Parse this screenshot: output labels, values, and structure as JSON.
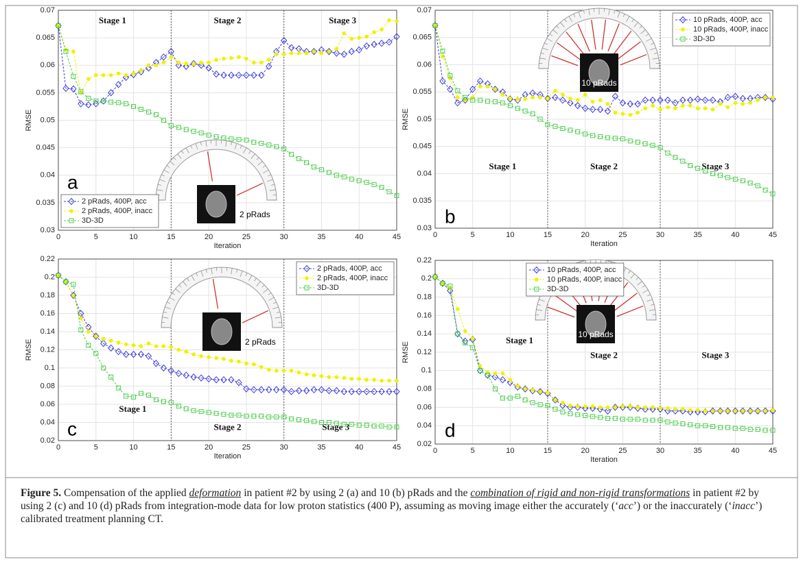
{
  "chart_data": [
    {
      "type": "line",
      "panel_label": "a",
      "xlabel": "Iteration",
      "ylabel": "RMSE",
      "x": [
        0,
        1,
        2,
        3,
        4,
        5,
        6,
        7,
        8,
        9,
        10,
        11,
        12,
        13,
        14,
        15,
        16,
        17,
        18,
        19,
        20,
        21,
        22,
        23,
        24,
        25,
        26,
        27,
        28,
        29,
        30,
        31,
        32,
        33,
        34,
        35,
        36,
        37,
        38,
        39,
        40,
        41,
        42,
        43,
        44,
        45
      ],
      "series": [
        {
          "name": "2 pRads, 400P, acc",
          "color": "#3c3cdc",
          "marker": "diamond",
          "values": [
            0.0672,
            0.0558,
            0.0557,
            0.053,
            0.0528,
            0.053,
            0.0535,
            0.055,
            0.0565,
            0.0578,
            0.0583,
            0.0588,
            0.0595,
            0.0605,
            0.0615,
            0.0625,
            0.06,
            0.0598,
            0.0603,
            0.06,
            0.0595,
            0.0584,
            0.0582,
            0.0582,
            0.0582,
            0.0582,
            0.0582,
            0.0582,
            0.0598,
            0.0625,
            0.0645,
            0.0632,
            0.063,
            0.0625,
            0.0625,
            0.0628,
            0.0625,
            0.0622,
            0.062,
            0.0625,
            0.0628,
            0.0635,
            0.0638,
            0.064,
            0.0642,
            0.0652
          ]
        },
        {
          "name": "2 pRads, 400P, inacc",
          "color": "#f0f000",
          "marker": "circle",
          "values": [
            0.0672,
            0.0628,
            0.0625,
            0.055,
            0.0575,
            0.0582,
            0.0582,
            0.0582,
            0.0585,
            0.0582,
            0.0585,
            0.059,
            0.06,
            0.06,
            0.0605,
            0.0615,
            0.0605,
            0.0603,
            0.0602,
            0.0605,
            0.0605,
            0.061,
            0.0612,
            0.0613,
            0.0615,
            0.0612,
            0.0605,
            0.0605,
            0.061,
            0.062,
            0.062,
            0.0622,
            0.0622,
            0.0622,
            0.0625,
            0.0622,
            0.0625,
            0.063,
            0.0658,
            0.0648,
            0.065,
            0.0652,
            0.066,
            0.0665,
            0.0682,
            0.068
          ]
        },
        {
          "name": "3D-3D",
          "color": "#4ccc4c",
          "marker": "square",
          "values": [
            0.0672,
            0.0625,
            0.058,
            0.0552,
            0.054,
            0.0535,
            0.0535,
            0.0533,
            0.0532,
            0.053,
            0.0525,
            0.052,
            0.0515,
            0.051,
            0.05,
            0.049,
            0.0487,
            0.0483,
            0.048,
            0.0477,
            0.0473,
            0.047,
            0.0468,
            0.0466,
            0.0465,
            0.0464,
            0.046,
            0.0458,
            0.0455,
            0.0452,
            0.0448,
            0.0438,
            0.043,
            0.0423,
            0.0415,
            0.041,
            0.0405,
            0.04,
            0.0397,
            0.0393,
            0.039,
            0.0387,
            0.0383,
            0.0378,
            0.037,
            0.0363
          ]
        }
      ],
      "xlim": [
        0,
        45
      ],
      "xticks": [
        0,
        5,
        10,
        15,
        20,
        25,
        30,
        35,
        40,
        45
      ],
      "ylim": [
        0.03,
        0.07
      ],
      "yticks": [
        0.03,
        0.035,
        0.04,
        0.045,
        0.05,
        0.055,
        0.06,
        0.065,
        0.07
      ],
      "grid": true,
      "legend": "lower left",
      "stage_boundaries": [
        15,
        30
      ],
      "stages": [
        "Stage 1",
        "Stage 2",
        "Stage 3"
      ],
      "inset_label": "2 pRads"
    },
    {
      "type": "line",
      "panel_label": "b",
      "xlabel": "Iteration",
      "ylabel": "RMSE",
      "x": [
        0,
        1,
        2,
        3,
        4,
        5,
        6,
        7,
        8,
        9,
        10,
        11,
        12,
        13,
        14,
        15,
        16,
        17,
        18,
        19,
        20,
        21,
        22,
        23,
        24,
        25,
        26,
        27,
        28,
        29,
        30,
        31,
        32,
        33,
        34,
        35,
        36,
        37,
        38,
        39,
        40,
        41,
        42,
        43,
        44,
        45
      ],
      "series": [
        {
          "name": "10 pRads, 400P, acc",
          "color": "#3c3cdc",
          "marker": "diamond",
          "values": [
            0.0672,
            0.057,
            0.0555,
            0.053,
            0.0535,
            0.0555,
            0.057,
            0.0565,
            0.0555,
            0.055,
            0.0537,
            0.0535,
            0.0545,
            0.0548,
            0.0545,
            0.0538,
            0.054,
            0.0535,
            0.053,
            0.0525,
            0.052,
            0.0518,
            0.0518,
            0.0515,
            0.0542,
            0.053,
            0.0528,
            0.0528,
            0.0535,
            0.0535,
            0.0535,
            0.0535,
            0.053,
            0.0535,
            0.0535,
            0.0537,
            0.0535,
            0.0535,
            0.0532,
            0.054,
            0.0542,
            0.0538,
            0.0538,
            0.054,
            0.054,
            0.0537
          ]
        },
        {
          "name": "10 pRads, 400P, inacc",
          "color": "#f0f000",
          "marker": "circle",
          "values": [
            0.0672,
            0.0615,
            0.0575,
            0.054,
            0.0535,
            0.054,
            0.056,
            0.056,
            0.0555,
            0.0545,
            0.0538,
            0.0537,
            0.0537,
            0.054,
            0.054,
            0.0538,
            0.0552,
            0.0545,
            0.0538,
            0.0535,
            0.0545,
            0.0532,
            0.0535,
            0.0528,
            0.0512,
            0.051,
            0.0508,
            0.0512,
            0.052,
            0.0525,
            0.0518,
            0.0522,
            0.052,
            0.0525,
            0.0525,
            0.052,
            0.052,
            0.0518,
            0.0528,
            0.0522,
            0.053,
            0.0528,
            0.053,
            0.0535,
            0.054,
            0.054
          ]
        },
        {
          "name": "3D-3D",
          "color": "#4ccc4c",
          "marker": "square",
          "values": [
            0.0672,
            0.0625,
            0.058,
            0.0552,
            0.054,
            0.0535,
            0.0535,
            0.0533,
            0.0532,
            0.053,
            0.0525,
            0.052,
            0.0515,
            0.051,
            0.05,
            0.049,
            0.0487,
            0.0483,
            0.048,
            0.0477,
            0.0473,
            0.047,
            0.0468,
            0.0466,
            0.0465,
            0.0464,
            0.046,
            0.0458,
            0.0455,
            0.0452,
            0.0448,
            0.0438,
            0.043,
            0.0423,
            0.0415,
            0.041,
            0.0405,
            0.04,
            0.0397,
            0.0393,
            0.039,
            0.0387,
            0.0383,
            0.0378,
            0.037,
            0.0363
          ]
        }
      ],
      "xlim": [
        0,
        45
      ],
      "xticks": [
        0,
        5,
        10,
        15,
        20,
        25,
        30,
        35,
        40,
        45
      ],
      "ylim": [
        0.03,
        0.07
      ],
      "yticks": [
        0.03,
        0.035,
        0.04,
        0.045,
        0.05,
        0.055,
        0.06,
        0.065,
        0.07
      ],
      "grid": true,
      "legend": "upper right",
      "stage_boundaries": [
        15,
        30
      ],
      "stages": [
        "Stage 1",
        "Stage 2",
        "Stage 3"
      ],
      "inset_label": "10 pRads"
    },
    {
      "type": "line",
      "panel_label": "c",
      "xlabel": "Iteration",
      "ylabel": "RMSE",
      "x": [
        0,
        1,
        2,
        3,
        4,
        5,
        6,
        7,
        8,
        9,
        10,
        11,
        12,
        13,
        14,
        15,
        16,
        17,
        18,
        19,
        20,
        21,
        22,
        23,
        24,
        25,
        26,
        27,
        28,
        29,
        30,
        31,
        32,
        33,
        34,
        35,
        36,
        37,
        38,
        39,
        40,
        41,
        42,
        43,
        44,
        45
      ],
      "series": [
        {
          "name": "2 pRads, 400P, acc",
          "color": "#3c3cdc",
          "marker": "diamond",
          "values": [
            0.202,
            0.195,
            0.18,
            0.16,
            0.145,
            0.135,
            0.127,
            0.122,
            0.118,
            0.115,
            0.115,
            0.115,
            0.113,
            0.105,
            0.1,
            0.097,
            0.094,
            0.092,
            0.09,
            0.089,
            0.088,
            0.087,
            0.087,
            0.087,
            0.084,
            0.077,
            0.076,
            0.076,
            0.076,
            0.076,
            0.076,
            0.074,
            0.075,
            0.075,
            0.076,
            0.076,
            0.075,
            0.075,
            0.074,
            0.074,
            0.074,
            0.074,
            0.074,
            0.074,
            0.074,
            0.074
          ]
        },
        {
          "name": "2 pRads, 400P, inacc",
          "color": "#f0f000",
          "marker": "circle",
          "values": [
            0.202,
            0.195,
            0.18,
            0.155,
            0.14,
            0.135,
            0.132,
            0.13,
            0.128,
            0.126,
            0.125,
            0.124,
            0.127,
            0.124,
            0.124,
            0.123,
            0.12,
            0.118,
            0.115,
            0.113,
            0.112,
            0.111,
            0.11,
            0.108,
            0.107,
            0.105,
            0.104,
            0.101,
            0.098,
            0.097,
            0.097,
            0.097,
            0.095,
            0.093,
            0.092,
            0.091,
            0.09,
            0.09,
            0.089,
            0.088,
            0.088,
            0.087,
            0.087,
            0.086,
            0.086,
            0.086
          ]
        },
        {
          "name": "3D-3D",
          "color": "#4ccc4c",
          "marker": "square",
          "values": [
            0.202,
            0.195,
            0.192,
            0.142,
            0.125,
            0.116,
            0.1,
            0.09,
            0.078,
            0.069,
            0.068,
            0.072,
            0.07,
            0.065,
            0.063,
            0.062,
            0.058,
            0.055,
            0.053,
            0.052,
            0.051,
            0.05,
            0.049,
            0.048,
            0.048,
            0.047,
            0.047,
            0.047,
            0.046,
            0.046,
            0.046,
            0.044,
            0.043,
            0.042,
            0.041,
            0.04,
            0.04,
            0.039,
            0.038,
            0.038,
            0.037,
            0.037,
            0.036,
            0.036,
            0.035,
            0.035
          ]
        }
      ],
      "xlim": [
        0,
        45
      ],
      "xticks": [
        0,
        5,
        10,
        15,
        20,
        25,
        30,
        35,
        40,
        45
      ],
      "ylim": [
        0.02,
        0.22
      ],
      "yticks": [
        0.02,
        0.04,
        0.06,
        0.08,
        0.1,
        0.12,
        0.14,
        0.16,
        0.18,
        0.2,
        0.22
      ],
      "grid": true,
      "legend": "upper right",
      "stage_boundaries": [
        15,
        30
      ],
      "stages": [
        "Stage 1",
        "Stage 2",
        "Stage 3"
      ],
      "inset_label": "2 pRads"
    },
    {
      "type": "line",
      "panel_label": "d",
      "xlabel": "Iteration",
      "ylabel": "RMSE",
      "x": [
        0,
        1,
        2,
        3,
        4,
        5,
        6,
        7,
        8,
        9,
        10,
        11,
        12,
        13,
        14,
        15,
        16,
        17,
        18,
        19,
        20,
        21,
        22,
        23,
        24,
        25,
        26,
        27,
        28,
        29,
        30,
        31,
        32,
        33,
        34,
        35,
        36,
        37,
        38,
        39,
        40,
        41,
        42,
        43,
        44,
        45
      ],
      "series": [
        {
          "name": "10 pRads, 400P, acc",
          "color": "#3c3cdc",
          "marker": "diamond",
          "values": [
            0.202,
            0.195,
            0.187,
            0.14,
            0.132,
            0.134,
            0.1,
            0.095,
            0.093,
            0.09,
            0.087,
            0.082,
            0.08,
            0.078,
            0.077,
            0.075,
            0.068,
            0.062,
            0.06,
            0.06,
            0.059,
            0.059,
            0.058,
            0.056,
            0.06,
            0.06,
            0.06,
            0.059,
            0.058,
            0.058,
            0.058,
            0.056,
            0.056,
            0.056,
            0.055,
            0.055,
            0.055,
            0.056,
            0.056,
            0.056,
            0.056,
            0.056,
            0.056,
            0.056,
            0.056,
            0.056
          ]
        },
        {
          "name": "10 pRads, 400P, inacc",
          "color": "#f0f000",
          "marker": "circle",
          "values": [
            0.202,
            0.195,
            0.19,
            0.167,
            0.143,
            0.135,
            0.105,
            0.098,
            0.097,
            0.097,
            0.09,
            0.083,
            0.08,
            0.079,
            0.077,
            0.076,
            0.068,
            0.065,
            0.062,
            0.061,
            0.061,
            0.061,
            0.06,
            0.06,
            0.06,
            0.061,
            0.061,
            0.06,
            0.06,
            0.06,
            0.059,
            0.059,
            0.058,
            0.058,
            0.057,
            0.057,
            0.056,
            0.056,
            0.056,
            0.056,
            0.056,
            0.056,
            0.056,
            0.056,
            0.056,
            0.057
          ]
        },
        {
          "name": "3D-3D",
          "color": "#4ccc4c",
          "marker": "square",
          "values": [
            0.202,
            0.195,
            0.192,
            0.14,
            0.13,
            0.125,
            0.1,
            0.095,
            0.08,
            0.07,
            0.07,
            0.072,
            0.068,
            0.065,
            0.063,
            0.062,
            0.058,
            0.055,
            0.053,
            0.052,
            0.051,
            0.05,
            0.049,
            0.048,
            0.048,
            0.047,
            0.047,
            0.047,
            0.046,
            0.046,
            0.046,
            0.044,
            0.043,
            0.042,
            0.041,
            0.04,
            0.04,
            0.039,
            0.038,
            0.038,
            0.037,
            0.037,
            0.036,
            0.036,
            0.035,
            0.035
          ]
        }
      ],
      "xlim": [
        0,
        45
      ],
      "xticks": [
        0,
        5,
        10,
        15,
        20,
        25,
        30,
        35,
        40,
        45
      ],
      "ylim": [
        0.02,
        0.22
      ],
      "yticks": [
        0.02,
        0.04,
        0.06,
        0.08,
        0.1,
        0.12,
        0.14,
        0.16,
        0.18,
        0.2,
        0.22
      ],
      "grid": true,
      "legend": "upper center",
      "stage_boundaries": [
        15,
        30
      ],
      "stages": [
        "Stage 1",
        "Stage 2",
        "Stage 3"
      ],
      "inset_label": "10 pRads"
    }
  ],
  "caption": {
    "parts": [
      "Figure 5.",
      " Compensation of the applied ",
      "deformation",
      " in patient #2 by using 2 (a) and 10 (b) pRads and the ",
      "combination of rigid and non-rigid transformations",
      " in patient #2 by using 2 (c) and 10 (d) pRads from integration-mode data for low proton statistics (400 P), assuming as moving image either the accurately (‘",
      "acc",
      "’) or the inaccurately (‘",
      "inacc",
      "’) calibrated treatment planning CT."
    ]
  }
}
